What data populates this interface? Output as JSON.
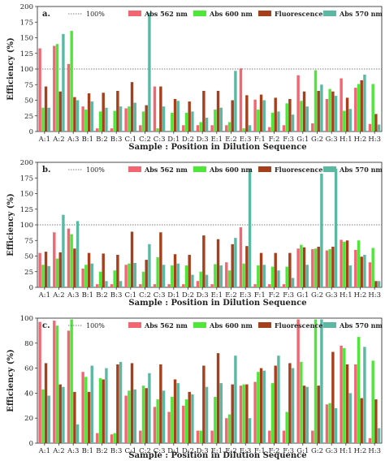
{
  "chart_data": [
    {
      "type": "bar",
      "panel": "a.",
      "xlabel": "Sample : Position in Dilution Sequence",
      "ylabel": "Efficiency (%)",
      "ylim": [
        0,
        200
      ],
      "yticks": [
        0,
        25,
        50,
        75,
        100,
        125,
        150,
        175,
        200
      ],
      "categories": [
        "A:1",
        "A:2",
        "A:3",
        "B:1",
        "B:2",
        "B:3",
        "C:1",
        "C:2",
        "C:3",
        "D:1",
        "D:2",
        "D:3",
        "E:1",
        "E:2",
        "E:3",
        "F:1",
        "F:2",
        "F:3",
        "G:1",
        "G:2",
        "G:3",
        "H:1",
        "H:2",
        "H:3"
      ],
      "reference_line": {
        "name": "100%",
        "value": 100
      },
      "series": [
        {
          "name": "Abs 562 nm",
          "color": "#f26672",
          "values": [
            133,
            137,
            108,
            40,
            5,
            5,
            37,
            10,
            72,
            0,
            10,
            10,
            10,
            10,
            101,
            51,
            7,
            10,
            90,
            13,
            52,
            85,
            70,
            12
          ]
        },
        {
          "name": "Abs 600 nm",
          "color": "#4fe63a",
          "values": [
            38,
            140,
            161,
            35,
            32,
            33,
            40,
            32,
            5,
            30,
            30,
            15,
            35,
            15,
            5,
            35,
            30,
            45,
            49,
            98,
            68,
            33,
            76,
            76
          ]
        },
        {
          "name": "Fluorescence",
          "color": "#a6401c",
          "values": [
            72,
            64,
            55,
            61,
            62,
            65,
            79,
            42,
            72,
            52,
            48,
            65,
            65,
            50,
            58,
            59,
            54,
            52,
            64,
            65,
            64,
            54,
            82,
            28
          ]
        },
        {
          "name": "Abs 570 nm",
          "color": "#5bb8a3",
          "values": [
            38,
            156,
            50,
            48,
            38,
            40,
            46,
            190,
            40,
            49,
            32,
            22,
            38,
            97,
            10,
            50,
            32,
            27,
            40,
            75,
            57,
            36,
            91,
            11
          ]
        }
      ]
    },
    {
      "type": "bar",
      "panel": "b.",
      "xlabel": "Sample : Position in Dilution Sequence",
      "ylabel": "Efficiency (%)",
      "ylim": [
        0,
        200
      ],
      "yticks": [
        0,
        25,
        50,
        75,
        100,
        125,
        150,
        175,
        200
      ],
      "categories": [
        "A:1",
        "A:2",
        "A:3",
        "B:1",
        "B:2",
        "B:3",
        "C:1",
        "C:2",
        "C:3",
        "D:1",
        "D:2",
        "D:3",
        "E:1",
        "E:2",
        "E:3",
        "F:1",
        "F:2",
        "F:3",
        "G:1",
        "G:2",
        "G:3",
        "H:1",
        "H:2",
        "H:3"
      ],
      "reference_line": {
        "name": "100%",
        "value": 100
      },
      "series": [
        {
          "name": "Abs 562 nm",
          "color": "#f26672",
          "values": [
            55,
            88,
            94,
            30,
            5,
            5,
            36,
            5,
            5,
            5,
            5,
            10,
            5,
            40,
            96,
            5,
            5,
            5,
            62,
            61,
            59,
            76,
            60,
            40
          ]
        },
        {
          "name": "Abs 600 nm",
          "color": "#4fe63a",
          "values": [
            36,
            46,
            85,
            36,
            25,
            27,
            38,
            25,
            48,
            35,
            35,
            25,
            37,
            27,
            38,
            35,
            33,
            33,
            68,
            62,
            61,
            73,
            75,
            63
          ]
        },
        {
          "name": "Fluorescence",
          "color": "#a6401c",
          "values": [
            57,
            56,
            62,
            55,
            54,
            52,
            89,
            44,
            88,
            53,
            52,
            83,
            77,
            69,
            66,
            55,
            55,
            55,
            64,
            65,
            65,
            75,
            49,
            10
          ]
        },
        {
          "name": "Abs 570 nm",
          "color": "#5bb8a3",
          "values": [
            34,
            116,
            106,
            38,
            10,
            10,
            39,
            69,
            36,
            38,
            20,
            20,
            35,
            79,
            190,
            36,
            27,
            15,
            36,
            182,
            190,
            35,
            52,
            10
          ]
        }
      ]
    },
    {
      "type": "bar",
      "panel": "c.",
      "xlabel": "Sample : Position in Dilution Sequence",
      "ylabel": "Efficiency (%)",
      "ylim": [
        0,
        100
      ],
      "yticks": [
        0,
        20,
        40,
        60,
        80,
        100
      ],
      "categories": [
        "A:1",
        "A:2",
        "A:3",
        "B:1",
        "B:2",
        "B:3",
        "C:1",
        "C:2",
        "C:3",
        "D:1",
        "D:2",
        "D:3",
        "E:1",
        "E:2",
        "E:3",
        "F:1",
        "F:2",
        "F:3",
        "G:1",
        "G:2",
        "G:3",
        "H:1",
        "H:2",
        "H:3"
      ],
      "reference_line": null,
      "series": [
        {
          "name": "Abs 562 nm",
          "color": "#f26672",
          "values": [
            97,
            98,
            90,
            57,
            8,
            7,
            38,
            10,
            29,
            25,
            30,
            10,
            10,
            20,
            46,
            49,
            10,
            10,
            99,
            10,
            31,
            78,
            63,
            4
          ]
        },
        {
          "name": "Abs 600 nm",
          "color": "#4fe63a",
          "values": [
            43,
            94,
            99,
            53,
            52,
            8,
            42,
            46,
            35,
            37,
            35,
            10,
            37,
            23,
            47,
            57,
            48,
            25,
            65,
            99,
            32,
            76,
            85,
            66
          ]
        },
        {
          "name": "Fluorescence",
          "color": "#a6401c",
          "values": [
            64,
            47,
            41,
            41,
            51,
            63,
            64,
            44,
            63,
            51,
            41,
            62,
            72,
            47,
            47,
            60,
            62,
            64,
            46,
            46,
            73,
            63,
            36,
            35
          ]
        },
        {
          "name": "Abs 570 nm",
          "color": "#5bb8a3",
          "values": [
            38,
            45,
            15,
            62,
            60,
            65,
            43,
            56,
            42,
            48,
            39,
            45,
            48,
            70,
            20,
            58,
            70,
            60,
            45,
            99,
            28,
            40,
            77,
            12
          ]
        }
      ]
    }
  ],
  "legend": {
    "reference_label": "100%",
    "items": [
      "Abs 562 nm",
      "Abs 600 nm",
      "Fluorescence",
      "Abs 570 nm"
    ]
  }
}
